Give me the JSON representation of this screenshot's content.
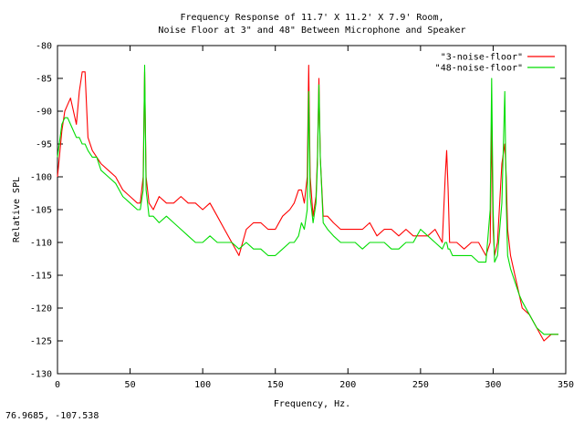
{
  "readout": "76.9685, -107.538",
  "chart_data": {
    "type": "line",
    "title_lines": [
      "Frequency Response of 11.7' X 11.2' X 7.9' Room,",
      "Noise Floor at 3\" and 48\" Between Microphone and Speaker"
    ],
    "xlabel": "Frequency, Hz.",
    "ylabel": "Relative SPL",
    "xlim": [
      0,
      350
    ],
    "ylim": [
      -130,
      -80
    ],
    "xticks": [
      0,
      50,
      100,
      150,
      200,
      250,
      300,
      350
    ],
    "yticks": [
      -80,
      -85,
      -90,
      -95,
      -100,
      -105,
      -110,
      -115,
      -120,
      -125,
      -130
    ],
    "grid": false,
    "legend_position": "top-right",
    "series": [
      {
        "name": "\"3-noise-floor\"",
        "color": "#ff0000",
        "x": [
          0,
          3,
          5,
          7,
          9,
          11,
          13,
          15,
          17,
          19,
          21,
          24,
          27,
          30,
          35,
          40,
          45,
          50,
          55,
          57,
          59,
          60,
          61,
          63,
          66,
          70,
          75,
          80,
          85,
          90,
          95,
          100,
          105,
          110,
          115,
          120,
          125,
          130,
          135,
          140,
          145,
          150,
          155,
          160,
          163,
          166,
          168,
          170,
          172,
          173,
          174,
          176,
          178,
          179,
          180,
          181,
          183,
          186,
          190,
          195,
          200,
          205,
          210,
          215,
          220,
          225,
          230,
          235,
          240,
          245,
          250,
          255,
          260,
          265,
          267,
          268,
          269,
          270,
          272,
          275,
          280,
          285,
          290,
          295,
          298,
          299,
          300,
          301,
          303,
          306,
          308,
          309,
          310,
          312,
          315,
          318,
          320,
          325,
          330,
          335,
          340,
          345
        ],
        "y": [
          -100,
          -93,
          -90,
          -89,
          -88,
          -90,
          -92,
          -87,
          -84,
          -84,
          -94,
          -96,
          -97,
          -98,
          -99,
          -100,
          -102,
          -103,
          -104,
          -104,
          -100,
          -84,
          -100,
          -104,
          -105,
          -103,
          -104,
          -104,
          -103,
          -104,
          -104,
          -105,
          -104,
          -106,
          -108,
          -110,
          -112,
          -108,
          -107,
          -107,
          -108,
          -108,
          -106,
          -105,
          -104,
          -102,
          -102,
          -104,
          -100,
          -83,
          -100,
          -106,
          -103,
          -97,
          -85,
          -97,
          -106,
          -106,
          -107,
          -108,
          -108,
          -108,
          -108,
          -107,
          -109,
          -108,
          -108,
          -109,
          -108,
          -109,
          -109,
          -109,
          -108,
          -110,
          -100,
          -96,
          -102,
          -110,
          -110,
          -110,
          -111,
          -110,
          -110,
          -112,
          -110,
          -92,
          -108,
          -112,
          -110,
          -98,
          -95,
          -100,
          -108,
          -112,
          -115,
          -118,
          -120,
          -121,
          -123,
          -125,
          -124,
          -124
        ]
      },
      {
        "name": "\"48-noise-floor\"",
        "color": "#00dd00",
        "x": [
          0,
          3,
          5,
          7,
          9,
          11,
          13,
          15,
          17,
          19,
          21,
          24,
          27,
          30,
          35,
          40,
          45,
          50,
          55,
          57,
          59,
          60,
          61,
          63,
          66,
          70,
          75,
          80,
          85,
          90,
          95,
          100,
          105,
          110,
          115,
          120,
          125,
          130,
          135,
          140,
          145,
          150,
          155,
          160,
          163,
          166,
          168,
          170,
          172,
          173,
          174,
          176,
          178,
          179,
          180,
          181,
          183,
          186,
          190,
          195,
          200,
          205,
          210,
          215,
          220,
          225,
          230,
          235,
          240,
          245,
          250,
          255,
          260,
          265,
          267,
          268,
          269,
          270,
          272,
          275,
          280,
          285,
          290,
          295,
          298,
          299,
          300,
          301,
          303,
          306,
          308,
          309,
          310,
          312,
          315,
          318,
          320,
          325,
          330,
          335,
          340,
          345
        ],
        "y": [
          -97,
          -92,
          -91,
          -91,
          -92,
          -93,
          -94,
          -94,
          -95,
          -95,
          -96,
          -97,
          -97,
          -99,
          -100,
          -101,
          -103,
          -104,
          -105,
          -105,
          -102,
          -83,
          -102,
          -106,
          -106,
          -107,
          -106,
          -107,
          -108,
          -109,
          -110,
          -110,
          -109,
          -110,
          -110,
          -110,
          -111,
          -110,
          -111,
          -111,
          -112,
          -112,
          -111,
          -110,
          -110,
          -109,
          -107,
          -108,
          -105,
          -87,
          -103,
          -107,
          -104,
          -98,
          -86,
          -97,
          -107,
          -108,
          -109,
          -110,
          -110,
          -110,
          -111,
          -110,
          -110,
          -110,
          -111,
          -111,
          -110,
          -110,
          -108,
          -109,
          -110,
          -111,
          -110,
          -110,
          -111,
          -111,
          -112,
          -112,
          -112,
          -112,
          -113,
          -113,
          -105,
          -85,
          -105,
          -113,
          -112,
          -104,
          -87,
          -104,
          -112,
          -114,
          -116,
          -118,
          -119,
          -121,
          -123,
          -124,
          -124,
          -124
        ]
      }
    ]
  }
}
